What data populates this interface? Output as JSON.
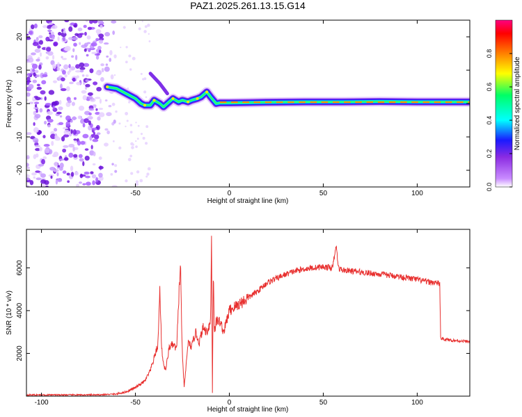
{
  "chart_data": [
    {
      "type": "heatmap",
      "title": "PAZ1.2025.261.13.15.G14",
      "xlabel": "Height of straight line (km)",
      "ylabel": "Frequency (Hz)",
      "xlim": [
        -108,
        128
      ],
      "ylim": [
        -25,
        25
      ],
      "x_ticks": [
        "-100",
        "-50",
        "0",
        "50",
        "100"
      ],
      "y_ticks": [
        "-20",
        "-10",
        "0",
        "10",
        "20"
      ],
      "colorbar": {
        "label": "Normalized spectral amplitude",
        "range": [
          0,
          1
        ],
        "ticks": [
          "0.0",
          "0.2",
          "0.4",
          "0.6",
          "0.8"
        ]
      },
      "ridge": {
        "x": [
          -65,
          -60,
          -55,
          -50,
          -47,
          -45,
          -42,
          -40,
          -37,
          -35,
          -32,
          -30,
          -27,
          -25,
          -22,
          -20,
          -17,
          -15,
          -12,
          -10,
          -7,
          -5,
          0,
          10,
          20,
          40,
          60,
          80,
          100,
          120,
          128
        ],
        "y": [
          5,
          4.5,
          3,
          1.5,
          0,
          -0.5,
          -0.5,
          1,
          0,
          -1,
          0.5,
          1.5,
          0.5,
          1,
          0.5,
          1,
          1.5,
          2,
          3.5,
          2,
          0,
          0.2,
          0.2,
          0.3,
          0.4,
          0.5,
          0.5,
          0.6,
          0.5,
          0.5,
          0.5
        ]
      },
      "branch": {
        "x": [
          -42,
          -37,
          -33
        ],
        "y": [
          9,
          6,
          3
        ]
      }
    },
    {
      "type": "line",
      "xlabel": "Height of straight line (km)",
      "ylabel": "SNR (10 * v/v)",
      "xlim": [
        -108,
        128
      ],
      "ylim": [
        0,
        7800
      ],
      "x_ticks": [
        "-100",
        "-50",
        "0",
        "50",
        "100"
      ],
      "y_ticks": [
        "2000",
        "4000",
        "6000"
      ],
      "color": "#e8302f",
      "series": [
        {
          "x": [
            -108,
            -90,
            -70,
            -60,
            -55,
            -50,
            -45,
            -42,
            -40,
            -38,
            -37,
            -36,
            -35,
            -34,
            -33,
            -32,
            -30,
            -28,
            -27,
            -26,
            -25,
            -24,
            -22,
            -20,
            -18,
            -16,
            -14,
            -12,
            -10,
            -9.5,
            -9,
            -8.5,
            -8,
            -7,
            -5,
            -3,
            0,
            5,
            10,
            15,
            20,
            25,
            30,
            35,
            40,
            45,
            50,
            55,
            56,
            57,
            58,
            60,
            65,
            70,
            80,
            90,
            100,
            105,
            110,
            112,
            112.5,
            115,
            120,
            128
          ],
          "y": [
            60,
            60,
            60,
            100,
            200,
            400,
            700,
            1200,
            1800,
            2400,
            5000,
            2200,
            1500,
            1200,
            1700,
            2300,
            2400,
            2200,
            4500,
            6100,
            1800,
            400,
            2500,
            2300,
            3000,
            2500,
            3200,
            3000,
            3500,
            7500,
            150,
            6200,
            3000,
            3500,
            3500,
            3000,
            4000,
            4300,
            4600,
            4900,
            5300,
            5500,
            5700,
            5850,
            5950,
            6000,
            6050,
            6000,
            6600,
            7000,
            6000,
            5900,
            5850,
            5800,
            5700,
            5600,
            5450,
            5350,
            5300,
            5250,
            2700,
            2650,
            2600,
            2550
          ]
        }
      ]
    }
  ]
}
